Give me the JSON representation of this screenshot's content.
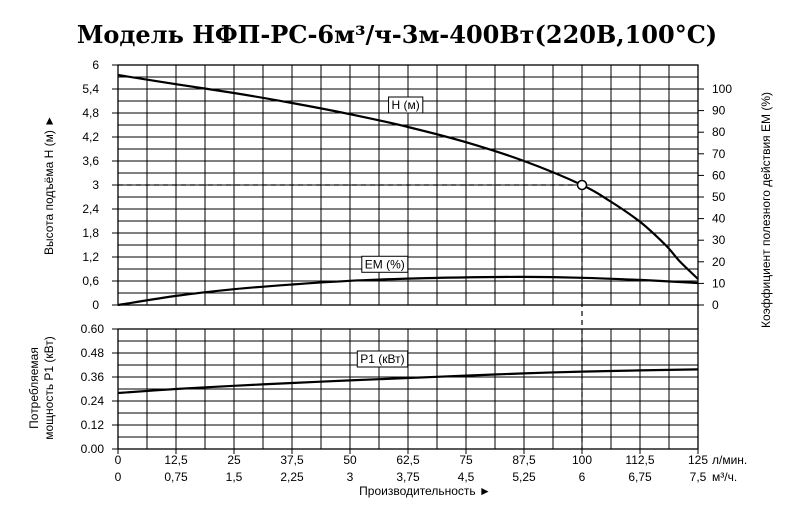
{
  "chart_data": {
    "type": "line",
    "title": "Модель НФП-РС-6м³/ч-3м-400Вт(220В,100°С)",
    "x_axis": {
      "label": "Производительность ►",
      "range": [
        0,
        125
      ],
      "ticks_lpm": [
        "0",
        "12,5",
        "25",
        "37,5",
        "50",
        "62,5",
        "75",
        "87,5",
        "100",
        "112,5",
        "125"
      ],
      "unit_lpm": "л/мин.",
      "ticks_m3h": [
        "0",
        "0,75",
        "1,5",
        "2,25",
        "3",
        "3,75",
        "4,5",
        "5,25",
        "6",
        "6,75",
        "7,5"
      ],
      "unit_m3h": "м³/ч."
    },
    "head_axis": {
      "label": "Высота подъёма H (м) ►",
      "range": [
        0,
        6
      ],
      "ticks": [
        "0",
        "0,6",
        "1,2",
        "1,8",
        "2,4",
        "3",
        "3,6",
        "4,2",
        "4,8",
        "5,4",
        "6"
      ]
    },
    "eff_axis": {
      "label": "Коэффициент полезного действия ЕМ (%)",
      "range": [
        0,
        100
      ],
      "ticks": [
        "0",
        "10",
        "20",
        "30",
        "40",
        "50",
        "60",
        "70",
        "80",
        "90",
        "100"
      ]
    },
    "power_axis": {
      "label_line1": "Потребляемая",
      "label_line2": "мощность P1 (кВт)",
      "range": [
        0,
        0.6
      ],
      "ticks": [
        "0.00",
        "0.12",
        "0.24",
        "0.36",
        "0.48",
        "0.60"
      ]
    },
    "grid": true,
    "series": [
      {
        "name": "H (м)",
        "axis": "head",
        "x": [
          0,
          12.5,
          25,
          37.5,
          50,
          62.5,
          75,
          87.5,
          100,
          106,
          112.5,
          118,
          121,
          125
        ],
        "y": [
          5.75,
          5.52,
          5.3,
          5.05,
          4.77,
          4.45,
          4.07,
          3.6,
          3.0,
          2.6,
          2.08,
          1.5,
          1.1,
          0.65
        ],
        "label_x": 62,
        "label_y": 4.9
      },
      {
        "name": "ЕМ (%)",
        "axis": "eff",
        "x": [
          0,
          12.5,
          25,
          37.5,
          50,
          62.5,
          75,
          87.5,
          100,
          112.5,
          125
        ],
        "y": [
          0,
          4.2,
          7.3,
          9.5,
          11.2,
          12.2,
          12.8,
          13.0,
          12.6,
          11.6,
          10.2
        ],
        "label_x": 57.5,
        "label_y": 17
      },
      {
        "name": "P1 (кВт)",
        "axis": "power",
        "x": [
          0,
          12.5,
          25,
          37.5,
          50,
          62.5,
          75,
          87.5,
          100,
          112.5,
          125
        ],
        "y": [
          0.28,
          0.3,
          0.316,
          0.33,
          0.343,
          0.355,
          0.367,
          0.378,
          0.387,
          0.393,
          0.398
        ],
        "label_x": 57,
        "label_y": 0.43
      }
    ],
    "operating_point": {
      "x": 100,
      "y": 3.0
    }
  }
}
